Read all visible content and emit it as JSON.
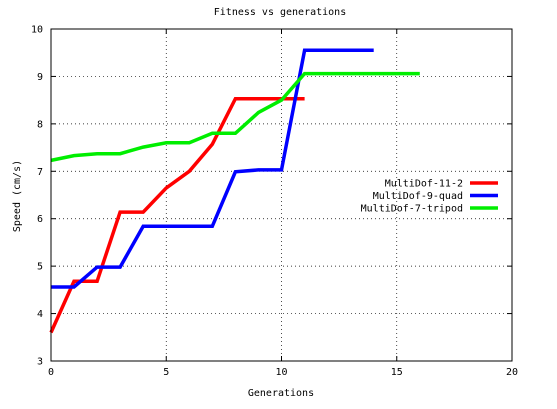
{
  "chart_data": {
    "type": "line",
    "title": "Fitness vs generations",
    "xlabel": "Generations",
    "ylabel": "Speed (cm/s)",
    "xlim": [
      0,
      20
    ],
    "ylim": [
      3,
      10
    ],
    "x_ticks": [
      0,
      5,
      10,
      15,
      20
    ],
    "y_ticks": [
      3,
      4,
      5,
      6,
      7,
      8,
      9,
      10
    ],
    "grid": true,
    "legend_position": "right",
    "series": [
      {
        "name": "MultiDof-11-2",
        "color": "#ff0000",
        "x": [
          0,
          1,
          2,
          3,
          4,
          5,
          6,
          7,
          8,
          9,
          10,
          11
        ],
        "y": [
          3.6,
          4.68,
          4.68,
          6.14,
          6.14,
          6.65,
          7.0,
          7.57,
          8.53,
          8.53,
          8.53,
          8.53
        ]
      },
      {
        "name": "MultiDof-9-quad",
        "color": "#0000ff",
        "x": [
          0,
          1,
          2,
          3,
          4,
          5,
          6,
          7,
          8,
          9,
          10,
          11,
          12,
          13,
          14
        ],
        "y": [
          4.56,
          4.56,
          4.98,
          4.98,
          5.84,
          5.84,
          5.84,
          5.84,
          6.99,
          7.03,
          7.03,
          9.55,
          9.55,
          9.55,
          9.55
        ]
      },
      {
        "name": "MultiDof-7-tripod",
        "color": "#00ee00",
        "x": [
          0,
          1,
          2,
          3,
          4,
          5,
          6,
          7,
          8,
          9,
          10,
          11,
          12,
          13,
          14,
          15,
          16
        ],
        "y": [
          7.23,
          7.33,
          7.37,
          7.37,
          7.51,
          7.6,
          7.6,
          7.8,
          7.8,
          8.24,
          8.5,
          9.06,
          9.06,
          9.06,
          9.06,
          9.06,
          9.06
        ]
      }
    ]
  }
}
